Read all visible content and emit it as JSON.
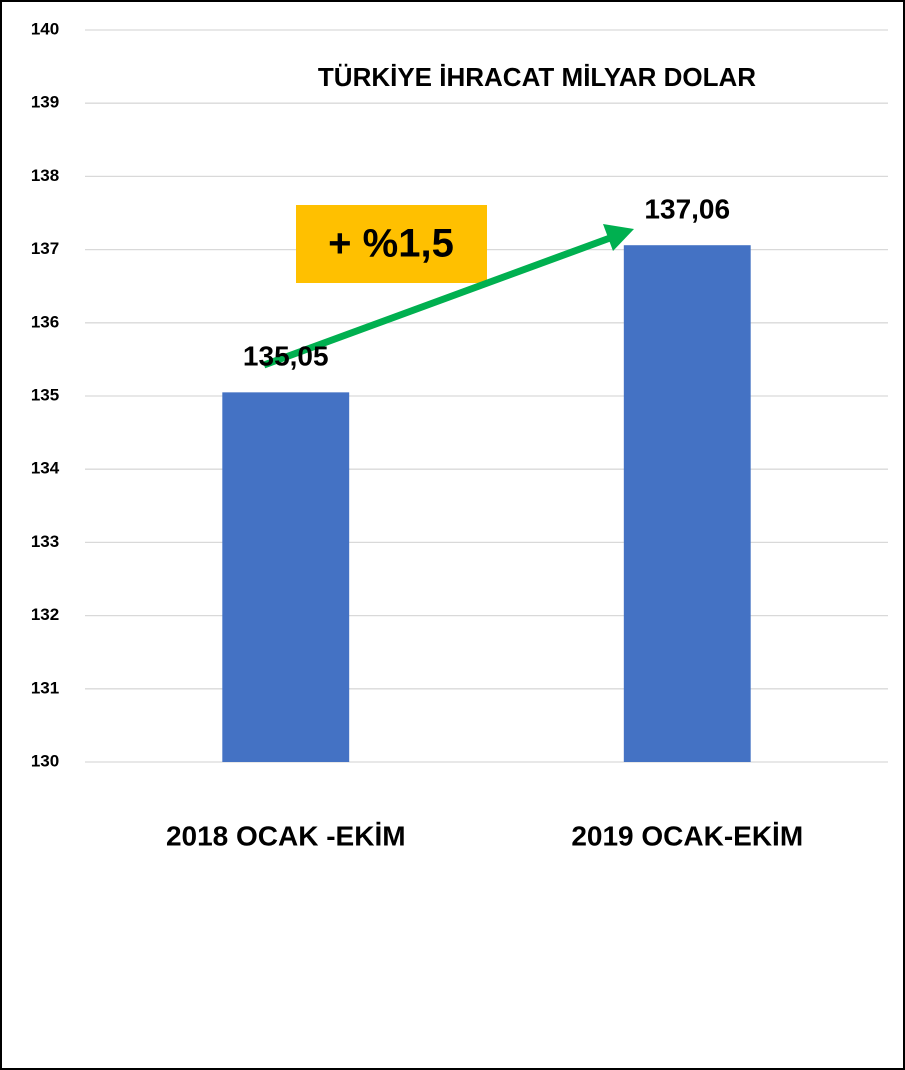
{
  "chart_data": {
    "type": "bar",
    "title": "TÜRKİYE İHRACAT MİLYAR DOLAR",
    "annotation": "+ %1,5",
    "categories": [
      "2018 OCAK -EKİM",
      "2019 OCAK-EKİM"
    ],
    "values": [
      135.05,
      137.06
    ],
    "value_labels": [
      "135,05",
      "137,06"
    ],
    "color": "#4472c4",
    "ylim": [
      130,
      140
    ],
    "yticks": [
      130,
      131,
      132,
      133,
      134,
      135,
      136,
      137,
      138,
      139,
      140
    ],
    "grid": true
  }
}
